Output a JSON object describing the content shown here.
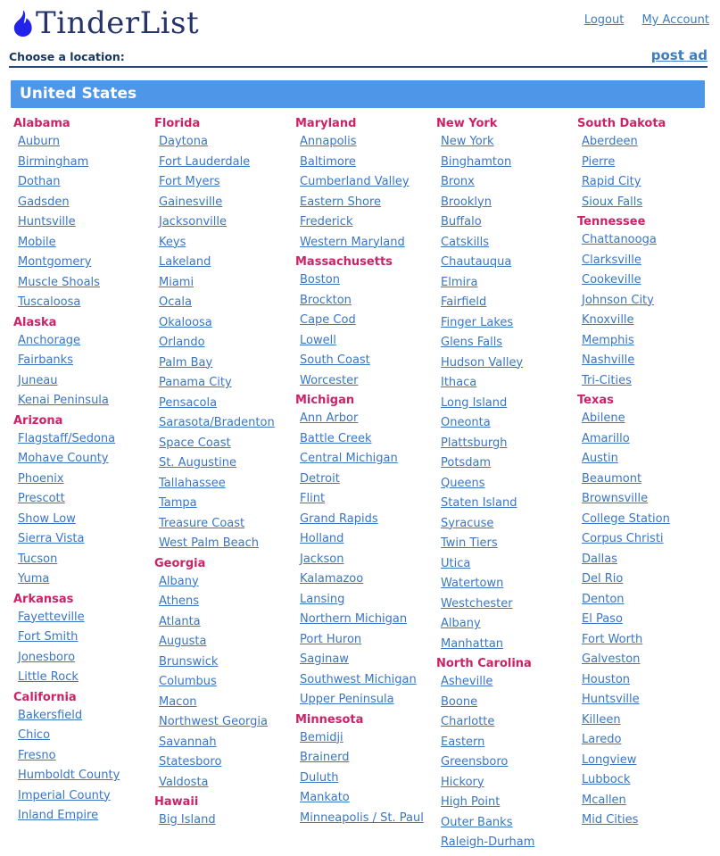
{
  "header": {
    "logo_text": "TinderList",
    "logout_label": "Logout",
    "my_account_label": "My Account",
    "choose_label": "Choose a location:",
    "post_ad_label": "post ad"
  },
  "banner": {
    "title": "United States"
  },
  "colors": {
    "state": "#cb2368",
    "link": "#3a76c4",
    "link-header": "#3d7dc1",
    "banner": "#4d96e8",
    "navy": "#25346a",
    "navy2": "#17365f",
    "rule": "#2b4a7a",
    "flame": "#2222e8"
  },
  "columns": [
    {
      "states": [
        {
          "name": "Alabama",
          "cities": [
            "Auburn",
            "Birmingham",
            "Dothan",
            "Gadsden",
            "Huntsville",
            "Mobile",
            "Montgomery",
            "Muscle Shoals",
            "Tuscaloosa"
          ]
        },
        {
          "name": "Alaska",
          "cities": [
            "Anchorage",
            "Fairbanks",
            "Juneau",
            "Kenai Peninsula"
          ]
        },
        {
          "name": "Arizona",
          "cities": [
            "Flagstaff/Sedona",
            "Mohave County",
            "Phoenix",
            "Prescott",
            "Show Low",
            "Sierra Vista",
            "Tucson",
            "Yuma"
          ]
        },
        {
          "name": "Arkansas",
          "cities": [
            "Fayetteville",
            "Fort Smith",
            "Jonesboro",
            "Little Rock"
          ]
        },
        {
          "name": "California",
          "cities": [
            "Bakersfield",
            "Chico",
            "Fresno",
            "Humboldt County",
            "Imperial County",
            "Inland Empire"
          ]
        }
      ]
    },
    {
      "states": [
        {
          "name": "Florida",
          "cities": [
            "Daytona",
            "Fort Lauderdale",
            "Fort Myers",
            "Gainesville",
            "Jacksonville",
            "Keys",
            "Lakeland",
            "Miami",
            "Ocala",
            "Okaloosa",
            "Orlando",
            "Palm Bay",
            "Panama City",
            "Pensacola",
            "Sarasota/Bradenton",
            "Space Coast",
            "St. Augustine",
            "Tallahassee",
            "Tampa",
            "Treasure Coast",
            "West Palm Beach"
          ]
        },
        {
          "name": "Georgia",
          "cities": [
            "Albany",
            "Athens",
            "Atlanta",
            "Augusta",
            "Brunswick",
            "Columbus",
            "Macon",
            "Northwest Georgia",
            "Savannah",
            "Statesboro",
            "Valdosta"
          ]
        },
        {
          "name": "Hawaii",
          "cities": [
            "Big Island"
          ]
        }
      ]
    },
    {
      "states": [
        {
          "name": "Maryland",
          "cities": [
            "Annapolis",
            "Baltimore",
            "Cumberland Valley",
            "Eastern Shore",
            "Frederick",
            "Western Maryland"
          ]
        },
        {
          "name": "Massachusetts",
          "cities": [
            "Boston",
            "Brockton",
            "Cape Cod",
            "Lowell",
            "South Coast",
            "Worcester"
          ]
        },
        {
          "name": "Michigan",
          "cities": [
            "Ann Arbor",
            "Battle Creek",
            "Central Michigan",
            "Detroit",
            "Flint",
            "Grand Rapids",
            "Holland",
            "Jackson",
            "Kalamazoo",
            "Lansing",
            "Northern Michigan",
            "Port Huron",
            "Saginaw",
            "Southwest Michigan",
            "Upper Peninsula"
          ]
        },
        {
          "name": "Minnesota",
          "cities": [
            "Bemidji",
            "Brainerd",
            "Duluth",
            "Mankato",
            "Minneapolis / St. Paul"
          ]
        }
      ]
    },
    {
      "states": [
        {
          "name": "New York",
          "cities": [
            "New York",
            "Binghamton",
            "Bronx",
            "Brooklyn",
            "Buffalo",
            "Catskills",
            "Chautauqua",
            "Elmira",
            "Fairfield",
            "Finger Lakes",
            "Glens Falls",
            "Hudson Valley",
            "Ithaca",
            "Long Island",
            "Oneonta",
            "Plattsburgh",
            "Potsdam",
            "Queens",
            "Staten Island",
            "Syracuse",
            "Twin Tiers",
            "Utica",
            "Watertown",
            "Westchester",
            "Albany",
            "Manhattan"
          ]
        },
        {
          "name": "North Carolina",
          "cities": [
            "Asheville",
            "Boone",
            "Charlotte",
            "Eastern",
            "Greensboro",
            "Hickory",
            "High Point",
            "Outer Banks",
            "Raleigh-Durham"
          ]
        }
      ]
    },
    {
      "states": [
        {
          "name": "South Dakota",
          "cities": [
            "Aberdeen",
            "Pierre",
            "Rapid City",
            "Sioux Falls"
          ]
        },
        {
          "name": "Tennessee",
          "cities": [
            "Chattanooga",
            "Clarksville",
            "Cookeville",
            "Johnson City",
            "Knoxville",
            "Memphis",
            "Nashville",
            "Tri-Cities"
          ]
        },
        {
          "name": "Texas",
          "cities": [
            "Abilene",
            "Amarillo",
            "Austin",
            "Beaumont",
            "Brownsville",
            "College Station",
            "Corpus Christi",
            "Dallas",
            "Del Rio",
            "Denton",
            "El Paso",
            "Fort Worth",
            "Galveston",
            "Houston",
            "Huntsville",
            "Killeen",
            "Laredo",
            "Longview",
            "Lubbock",
            "Mcallen",
            "Mid Cities"
          ]
        }
      ]
    }
  ]
}
